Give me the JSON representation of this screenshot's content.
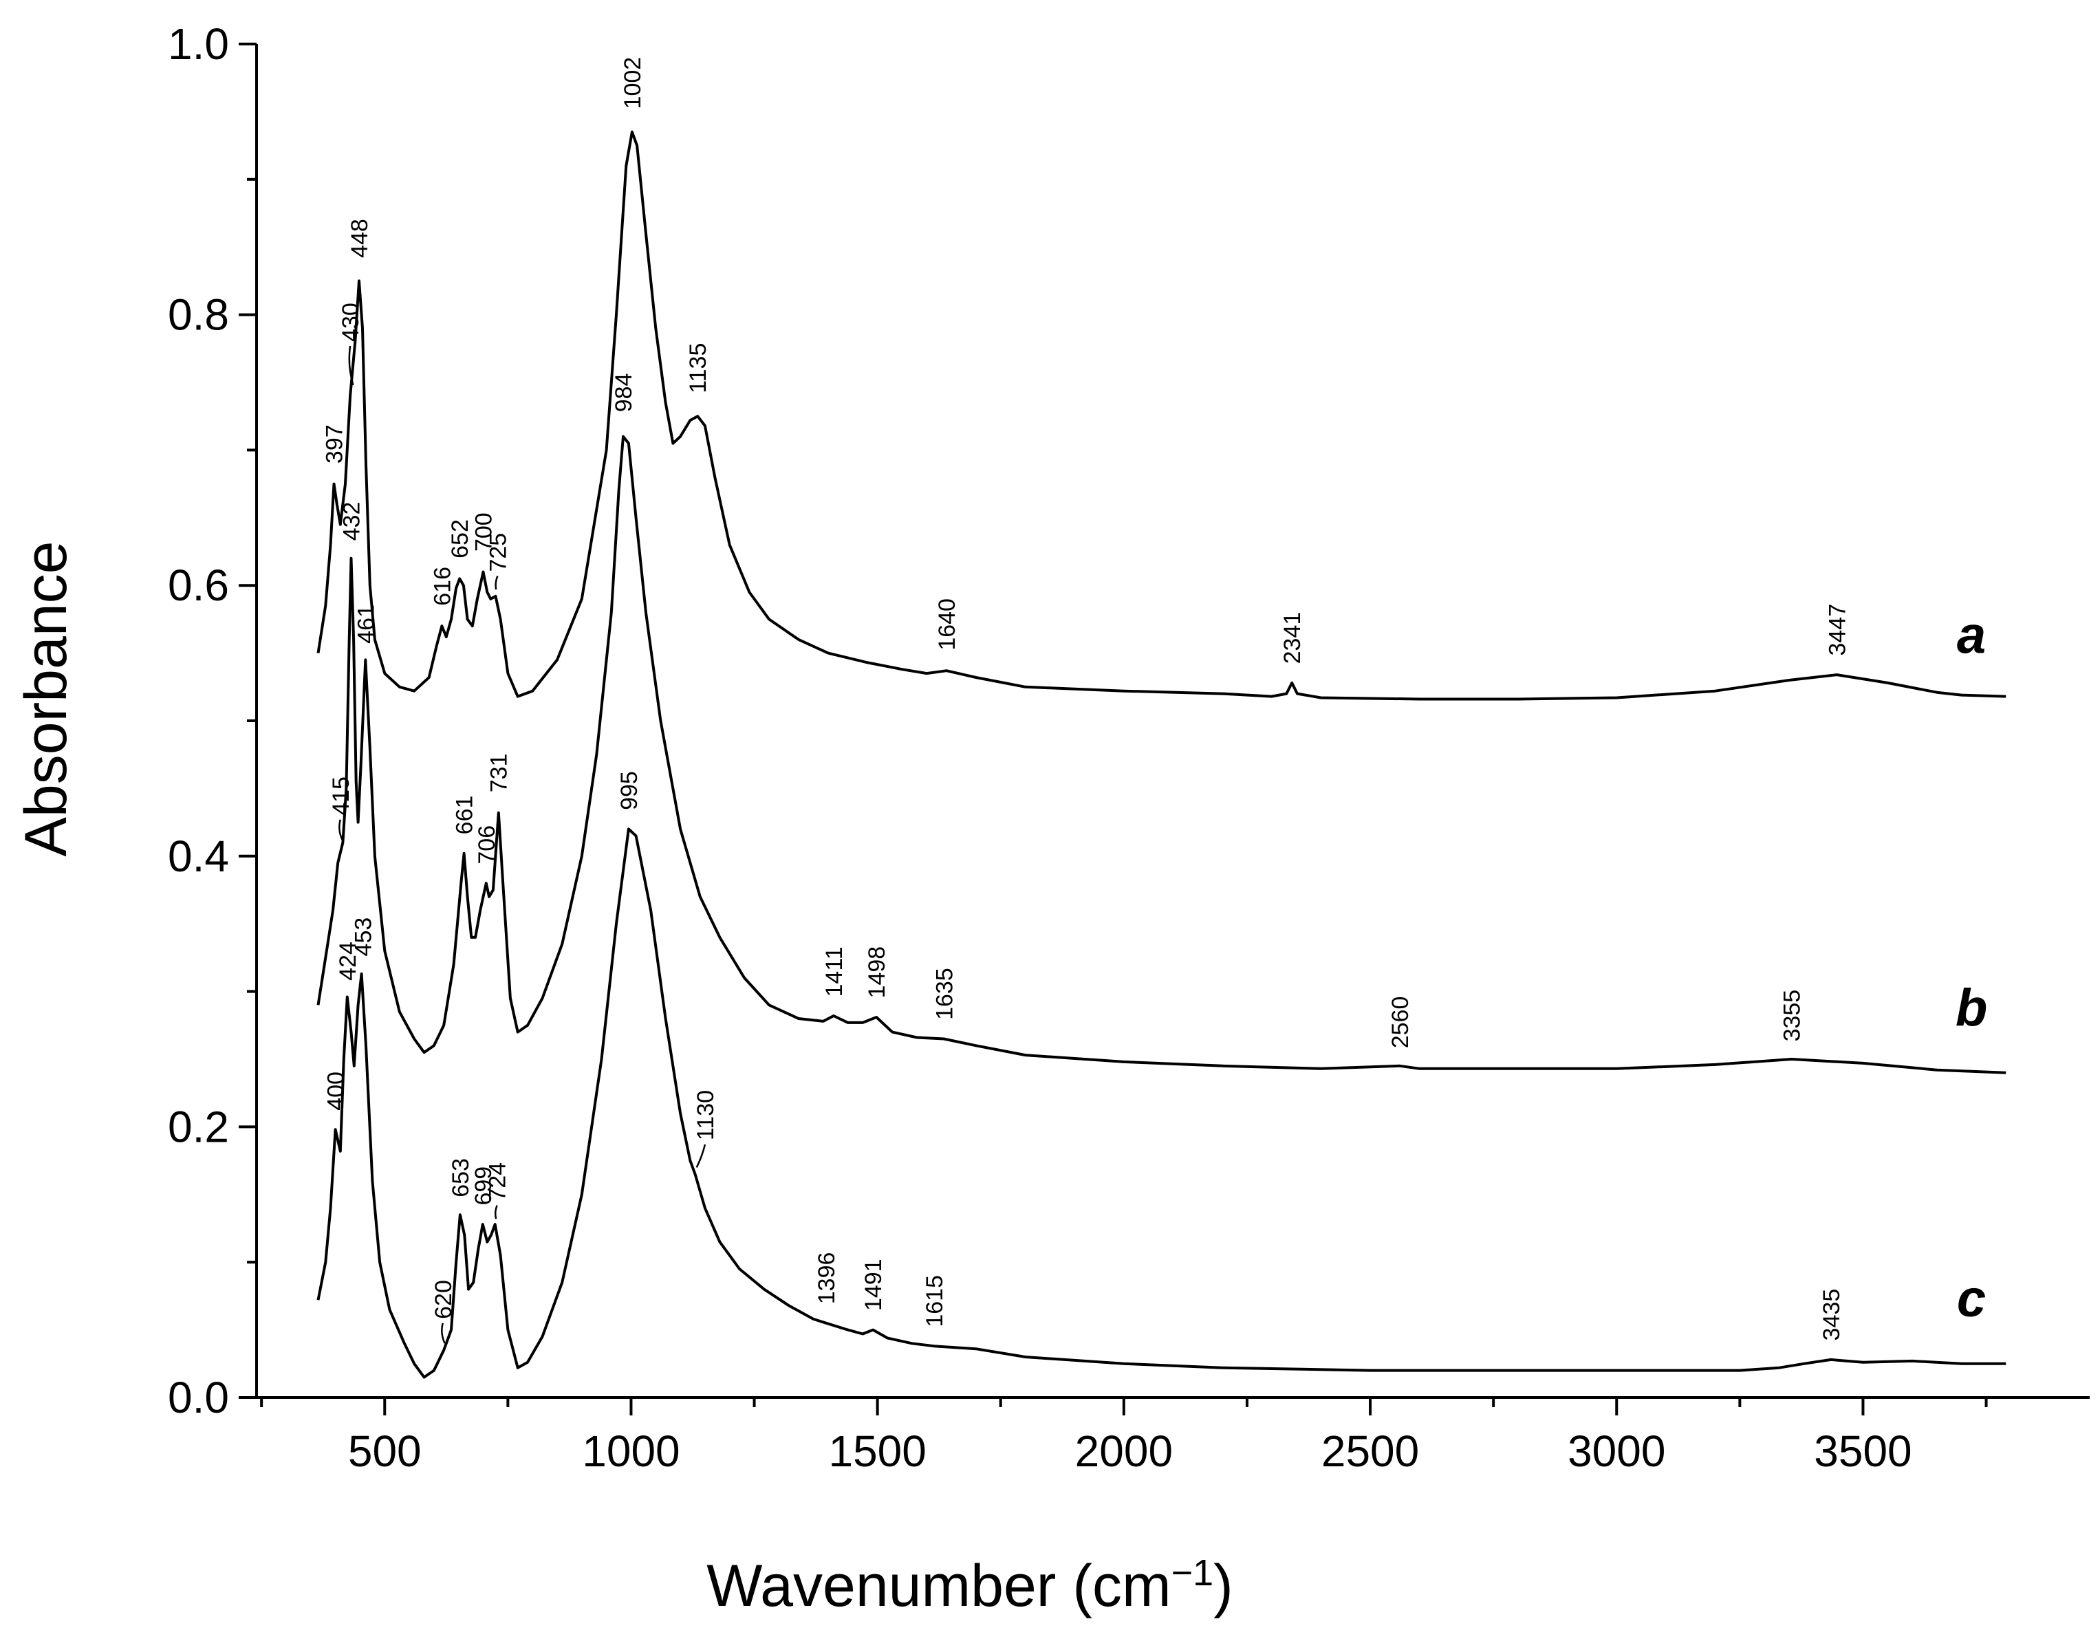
{
  "chart_data": {
    "type": "line",
    "title": "",
    "xlabel": "Wavenumber (cm",
    "xlabel_sup": "−1",
    "xlabel_close": ")",
    "ylabel": "Absorbance",
    "xlim": [
      240,
      3960
    ],
    "ylim": [
      0.0,
      1.0
    ],
    "x_ticks": [
      500,
      1000,
      1500,
      2000,
      2500,
      3000,
      3500
    ],
    "x_tick_labels": [
      "500",
      "1000",
      "1500",
      "2000",
      "2500",
      "3000",
      "3500"
    ],
    "x_minor_step": 250,
    "y_ticks": [
      0.0,
      0.2,
      0.4,
      0.6,
      0.8,
      1.0
    ],
    "y_tick_labels": [
      "0.0",
      "0.2",
      "0.4",
      "0.6",
      "0.8",
      "1.0"
    ],
    "y_minor_step": 0.1,
    "grid": false,
    "series": [
      {
        "name": "a",
        "points": [
          [
            365,
            0.55
          ],
          [
            380,
            0.585
          ],
          [
            390,
            0.63
          ],
          [
            397,
            0.675
          ],
          [
            403,
            0.66
          ],
          [
            410,
            0.645
          ],
          [
            420,
            0.675
          ],
          [
            430,
            0.74
          ],
          [
            440,
            0.78
          ],
          [
            448,
            0.825
          ],
          [
            455,
            0.79
          ],
          [
            462,
            0.69
          ],
          [
            470,
            0.6
          ],
          [
            480,
            0.56
          ],
          [
            500,
            0.535
          ],
          [
            530,
            0.525
          ],
          [
            560,
            0.522
          ],
          [
            590,
            0.532
          ],
          [
            605,
            0.555
          ],
          [
            616,
            0.57
          ],
          [
            625,
            0.562
          ],
          [
            635,
            0.575
          ],
          [
            645,
            0.598
          ],
          [
            652,
            0.605
          ],
          [
            660,
            0.6
          ],
          [
            668,
            0.575
          ],
          [
            678,
            0.57
          ],
          [
            688,
            0.59
          ],
          [
            700,
            0.61
          ],
          [
            708,
            0.595
          ],
          [
            715,
            0.59
          ],
          [
            725,
            0.592
          ],
          [
            735,
            0.575
          ],
          [
            750,
            0.535
          ],
          [
            770,
            0.518
          ],
          [
            800,
            0.522
          ],
          [
            850,
            0.545
          ],
          [
            900,
            0.59
          ],
          [
            950,
            0.7
          ],
          [
            970,
            0.8
          ],
          [
            990,
            0.91
          ],
          [
            1002,
            0.935
          ],
          [
            1012,
            0.925
          ],
          [
            1030,
            0.86
          ],
          [
            1050,
            0.79
          ],
          [
            1070,
            0.735
          ],
          [
            1085,
            0.705
          ],
          [
            1100,
            0.71
          ],
          [
            1120,
            0.722
          ],
          [
            1135,
            0.725
          ],
          [
            1150,
            0.718
          ],
          [
            1170,
            0.68
          ],
          [
            1200,
            0.63
          ],
          [
            1240,
            0.595
          ],
          [
            1280,
            0.575
          ],
          [
            1340,
            0.56
          ],
          [
            1400,
            0.55
          ],
          [
            1480,
            0.543
          ],
          [
            1550,
            0.538
          ],
          [
            1600,
            0.535
          ],
          [
            1640,
            0.537
          ],
          [
            1700,
            0.532
          ],
          [
            1800,
            0.525
          ],
          [
            2000,
            0.522
          ],
          [
            2200,
            0.52
          ],
          [
            2300,
            0.518
          ],
          [
            2330,
            0.52
          ],
          [
            2341,
            0.528
          ],
          [
            2352,
            0.52
          ],
          [
            2400,
            0.517
          ],
          [
            2600,
            0.516
          ],
          [
            2800,
            0.516
          ],
          [
            3000,
            0.517
          ],
          [
            3200,
            0.522
          ],
          [
            3350,
            0.53
          ],
          [
            3447,
            0.534
          ],
          [
            3550,
            0.528
          ],
          [
            3650,
            0.521
          ],
          [
            3700,
            0.519
          ],
          [
            3790,
            0.518
          ]
        ]
      },
      {
        "name": "b",
        "points": [
          [
            365,
            0.29
          ],
          [
            380,
            0.325
          ],
          [
            395,
            0.36
          ],
          [
            405,
            0.395
          ],
          [
            415,
            0.41
          ],
          [
            422,
            0.45
          ],
          [
            428,
            0.56
          ],
          [
            432,
            0.62
          ],
          [
            437,
            0.56
          ],
          [
            442,
            0.455
          ],
          [
            446,
            0.425
          ],
          [
            452,
            0.47
          ],
          [
            461,
            0.545
          ],
          [
            470,
            0.48
          ],
          [
            480,
            0.4
          ],
          [
            500,
            0.33
          ],
          [
            530,
            0.285
          ],
          [
            560,
            0.265
          ],
          [
            580,
            0.255
          ],
          [
            600,
            0.26
          ],
          [
            620,
            0.275
          ],
          [
            640,
            0.32
          ],
          [
            655,
            0.38
          ],
          [
            661,
            0.402
          ],
          [
            668,
            0.37
          ],
          [
            676,
            0.34
          ],
          [
            684,
            0.34
          ],
          [
            694,
            0.36
          ],
          [
            706,
            0.38
          ],
          [
            712,
            0.37
          ],
          [
            720,
            0.375
          ],
          [
            731,
            0.432
          ],
          [
            740,
            0.38
          ],
          [
            755,
            0.295
          ],
          [
            770,
            0.27
          ],
          [
            790,
            0.275
          ],
          [
            820,
            0.295
          ],
          [
            860,
            0.335
          ],
          [
            900,
            0.4
          ],
          [
            930,
            0.475
          ],
          [
            960,
            0.58
          ],
          [
            975,
            0.67
          ],
          [
            984,
            0.71
          ],
          [
            995,
            0.705
          ],
          [
            1010,
            0.65
          ],
          [
            1030,
            0.58
          ],
          [
            1060,
            0.5
          ],
          [
            1100,
            0.42
          ],
          [
            1140,
            0.37
          ],
          [
            1180,
            0.34
          ],
          [
            1230,
            0.31
          ],
          [
            1280,
            0.29
          ],
          [
            1340,
            0.28
          ],
          [
            1390,
            0.278
          ],
          [
            1411,
            0.282
          ],
          [
            1440,
            0.277
          ],
          [
            1470,
            0.277
          ],
          [
            1498,
            0.281
          ],
          [
            1530,
            0.27
          ],
          [
            1580,
            0.266
          ],
          [
            1635,
            0.265
          ],
          [
            1700,
            0.26
          ],
          [
            1800,
            0.253
          ],
          [
            2000,
            0.248
          ],
          [
            2200,
            0.245
          ],
          [
            2400,
            0.243
          ],
          [
            2560,
            0.245
          ],
          [
            2600,
            0.243
          ],
          [
            2800,
            0.243
          ],
          [
            3000,
            0.243
          ],
          [
            3200,
            0.246
          ],
          [
            3355,
            0.25
          ],
          [
            3500,
            0.247
          ],
          [
            3650,
            0.242
          ],
          [
            3790,
            0.24
          ]
        ]
      },
      {
        "name": "c",
        "points": [
          [
            365,
            0.072
          ],
          [
            380,
            0.1
          ],
          [
            390,
            0.14
          ],
          [
            400,
            0.198
          ],
          [
            405,
            0.19
          ],
          [
            410,
            0.182
          ],
          [
            417,
            0.25
          ],
          [
            424,
            0.296
          ],
          [
            432,
            0.27
          ],
          [
            438,
            0.245
          ],
          [
            446,
            0.29
          ],
          [
            453,
            0.313
          ],
          [
            462,
            0.26
          ],
          [
            475,
            0.16
          ],
          [
            490,
            0.1
          ],
          [
            510,
            0.065
          ],
          [
            540,
            0.04
          ],
          [
            560,
            0.025
          ],
          [
            580,
            0.015
          ],
          [
            600,
            0.02
          ],
          [
            620,
            0.035
          ],
          [
            635,
            0.05
          ],
          [
            645,
            0.1
          ],
          [
            653,
            0.135
          ],
          [
            662,
            0.12
          ],
          [
            670,
            0.08
          ],
          [
            680,
            0.085
          ],
          [
            690,
            0.11
          ],
          [
            699,
            0.128
          ],
          [
            708,
            0.115
          ],
          [
            716,
            0.12
          ],
          [
            724,
            0.128
          ],
          [
            735,
            0.105
          ],
          [
            750,
            0.05
          ],
          [
            770,
            0.022
          ],
          [
            790,
            0.026
          ],
          [
            820,
            0.045
          ],
          [
            860,
            0.085
          ],
          [
            900,
            0.15
          ],
          [
            940,
            0.25
          ],
          [
            970,
            0.35
          ],
          [
            995,
            0.42
          ],
          [
            1010,
            0.415
          ],
          [
            1040,
            0.36
          ],
          [
            1070,
            0.28
          ],
          [
            1100,
            0.21
          ],
          [
            1120,
            0.175
          ],
          [
            1130,
            0.165
          ],
          [
            1150,
            0.14
          ],
          [
            1180,
            0.115
          ],
          [
            1220,
            0.095
          ],
          [
            1270,
            0.08
          ],
          [
            1320,
            0.068
          ],
          [
            1370,
            0.058
          ],
          [
            1396,
            0.055
          ],
          [
            1440,
            0.05
          ],
          [
            1470,
            0.047
          ],
          [
            1491,
            0.05
          ],
          [
            1520,
            0.044
          ],
          [
            1570,
            0.04
          ],
          [
            1615,
            0.038
          ],
          [
            1700,
            0.036
          ],
          [
            1800,
            0.03
          ],
          [
            2000,
            0.025
          ],
          [
            2200,
            0.022
          ],
          [
            2500,
            0.02
          ],
          [
            2800,
            0.02
          ],
          [
            3000,
            0.02
          ],
          [
            3250,
            0.02
          ],
          [
            3330,
            0.022
          ],
          [
            3380,
            0.025
          ],
          [
            3435,
            0.028
          ],
          [
            3500,
            0.026
          ],
          [
            3600,
            0.027
          ],
          [
            3700,
            0.025
          ],
          [
            3790,
            0.025
          ]
        ]
      }
    ],
    "series_labels": [
      {
        "text": "a",
        "x": 3720,
        "y": 0.55
      },
      {
        "text": "b",
        "x": 3720,
        "y": 0.275
      },
      {
        "text": "c",
        "x": 3720,
        "y": 0.06
      }
    ],
    "peak_labels": [
      {
        "text": "1002",
        "x": 1002,
        "y": 0.952,
        "leader": false
      },
      {
        "text": "448",
        "x": 448,
        "y": 0.842,
        "leader": false
      },
      {
        "text": "430",
        "x": 430,
        "y": 0.78,
        "leader": true,
        "lx": 436,
        "ly": 0.748
      },
      {
        "text": "1135",
        "x": 1135,
        "y": 0.742,
        "leader": false
      },
      {
        "text": "397",
        "x": 397,
        "y": 0.69,
        "leader": false
      },
      {
        "text": "984",
        "x": 984,
        "y": 0.728,
        "leader": false
      },
      {
        "text": "432",
        "x": 432,
        "y": 0.633,
        "leader": false
      },
      {
        "text": "616",
        "x": 616,
        "y": 0.585,
        "leader": false
      },
      {
        "text": "652",
        "x": 652,
        "y": 0.62,
        "leader": false
      },
      {
        "text": "700",
        "x": 700,
        "y": 0.625,
        "leader": false
      },
      {
        "text": "725",
        "x": 729,
        "y": 0.61,
        "leader": true,
        "lx": 726,
        "ly": 0.597
      },
      {
        "text": "461",
        "x": 461,
        "y": 0.557,
        "leader": false
      },
      {
        "text": "1640",
        "x": 1640,
        "y": 0.552,
        "leader": false
      },
      {
        "text": "2341",
        "x": 2341,
        "y": 0.542,
        "leader": false
      },
      {
        "text": "3447",
        "x": 3447,
        "y": 0.548,
        "leader": false
      },
      {
        "text": "415",
        "x": 410,
        "y": 0.43,
        "leader": true,
        "lx": 414,
        "ly": 0.412
      },
      {
        "text": "661",
        "x": 661,
        "y": 0.416,
        "leader": false
      },
      {
        "text": "706",
        "x": 706,
        "y": 0.394,
        "leader": false
      },
      {
        "text": "731",
        "x": 731,
        "y": 0.447,
        "leader": false
      },
      {
        "text": "995",
        "x": 995,
        "y": 0.434,
        "leader": false
      },
      {
        "text": "424",
        "x": 424,
        "y": 0.308,
        "leader": false
      },
      {
        "text": "453",
        "x": 456,
        "y": 0.326,
        "leader": false
      },
      {
        "text": "1411",
        "x": 1411,
        "y": 0.296,
        "leader": false
      },
      {
        "text": "1498",
        "x": 1498,
        "y": 0.295,
        "leader": false
      },
      {
        "text": "1635",
        "x": 1635,
        "y": 0.279,
        "leader": false
      },
      {
        "text": "2560",
        "x": 2560,
        "y": 0.258,
        "leader": false
      },
      {
        "text": "3355",
        "x": 3355,
        "y": 0.263,
        "leader": false
      },
      {
        "text": "400",
        "x": 400,
        "y": 0.212,
        "leader": false
      },
      {
        "text": "1130",
        "x": 1150,
        "y": 0.19,
        "leader": true,
        "lx": 1133,
        "ly": 0.17
      },
      {
        "text": "653",
        "x": 653,
        "y": 0.148,
        "leader": false
      },
      {
        "text": "699",
        "x": 699,
        "y": 0.142,
        "leader": false
      },
      {
        "text": "724",
        "x": 728,
        "y": 0.145,
        "leader": true,
        "lx": 726,
        "ly": 0.132
      },
      {
        "text": "620",
        "x": 618,
        "y": 0.058,
        "leader": true,
        "lx": 622,
        "ly": 0.04
      },
      {
        "text": "1396",
        "x": 1396,
        "y": 0.069,
        "leader": false
      },
      {
        "text": "1491",
        "x": 1491,
        "y": 0.064,
        "leader": false
      },
      {
        "text": "1615",
        "x": 1615,
        "y": 0.052,
        "leader": false
      },
      {
        "text": "3435",
        "x": 3435,
        "y": 0.042,
        "leader": false
      }
    ]
  }
}
